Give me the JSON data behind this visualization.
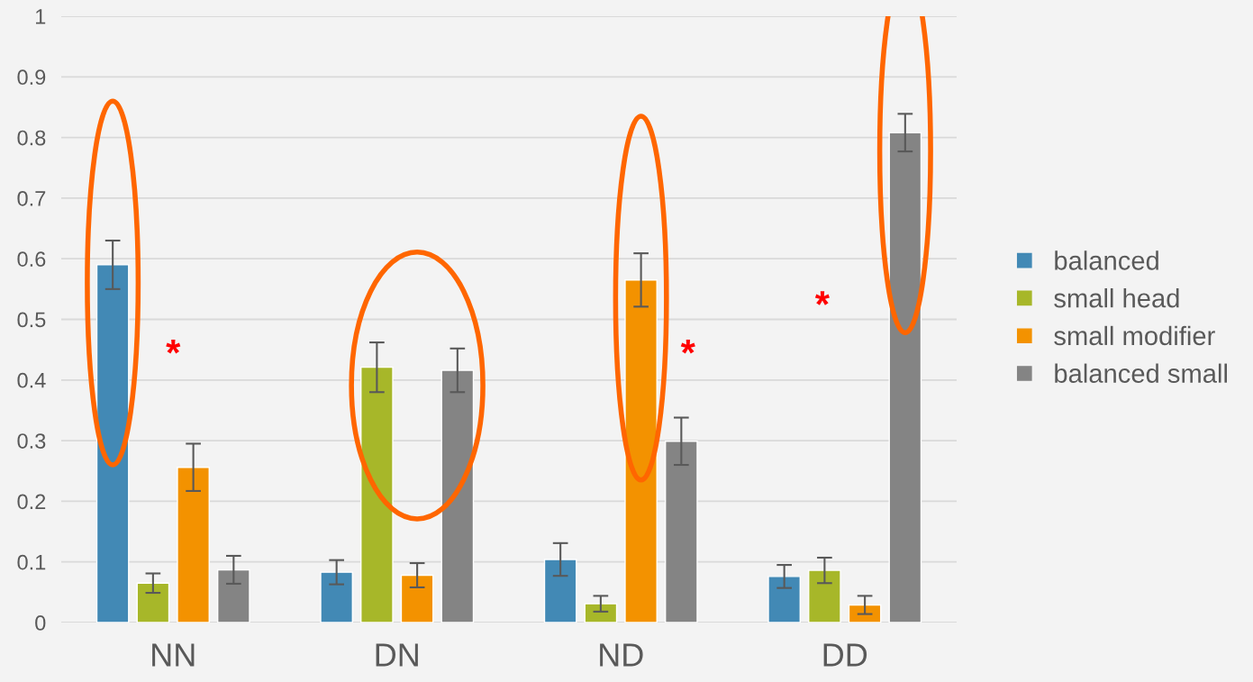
{
  "chart_data": {
    "type": "bar",
    "categories": [
      "NN",
      "DN",
      "ND",
      "DD"
    ],
    "series": [
      {
        "name": "balanced",
        "color": "#4289b5",
        "values": [
          0.59,
          0.083,
          0.104,
          0.076
        ],
        "errors": [
          0.04,
          0.02,
          0.027,
          0.019
        ]
      },
      {
        "name": "small head",
        "color": "#a7b729",
        "values": [
          0.065,
          0.421,
          0.031,
          0.086
        ],
        "errors": [
          0.016,
          0.041,
          0.013,
          0.021
        ]
      },
      {
        "name": "small modifier",
        "color": "#f39200",
        "values": [
          0.256,
          0.078,
          0.565,
          0.029
        ],
        "errors": [
          0.039,
          0.02,
          0.044,
          0.015
        ]
      },
      {
        "name": "balanced small",
        "color": "#848484",
        "values": [
          0.087,
          0.416,
          0.299,
          0.808
        ],
        "errors": [
          0.023,
          0.036,
          0.039,
          0.031
        ]
      }
    ],
    "ylim": [
      0,
      1
    ],
    "yticks": [
      0,
      {
        "value": 0.1,
        "label": "0.1"
      },
      {
        "value": 0.2,
        "label": "0.2"
      },
      {
        "value": 0.3,
        "label": "0.3"
      },
      {
        "value": 0.4,
        "label": "0.4"
      },
      {
        "value": 0.5,
        "label": "0.5"
      },
      {
        "value": 0.6,
        "label": "0.6"
      },
      {
        "value": 0.7,
        "label": "0.7"
      },
      {
        "value": 0.8,
        "label": "0.8"
      },
      {
        "value": 0.9,
        "label": "0.9"
      },
      1
    ],
    "grid": "y",
    "legend": "right",
    "annotations": [
      "*",
      "*",
      "*"
    ]
  }
}
